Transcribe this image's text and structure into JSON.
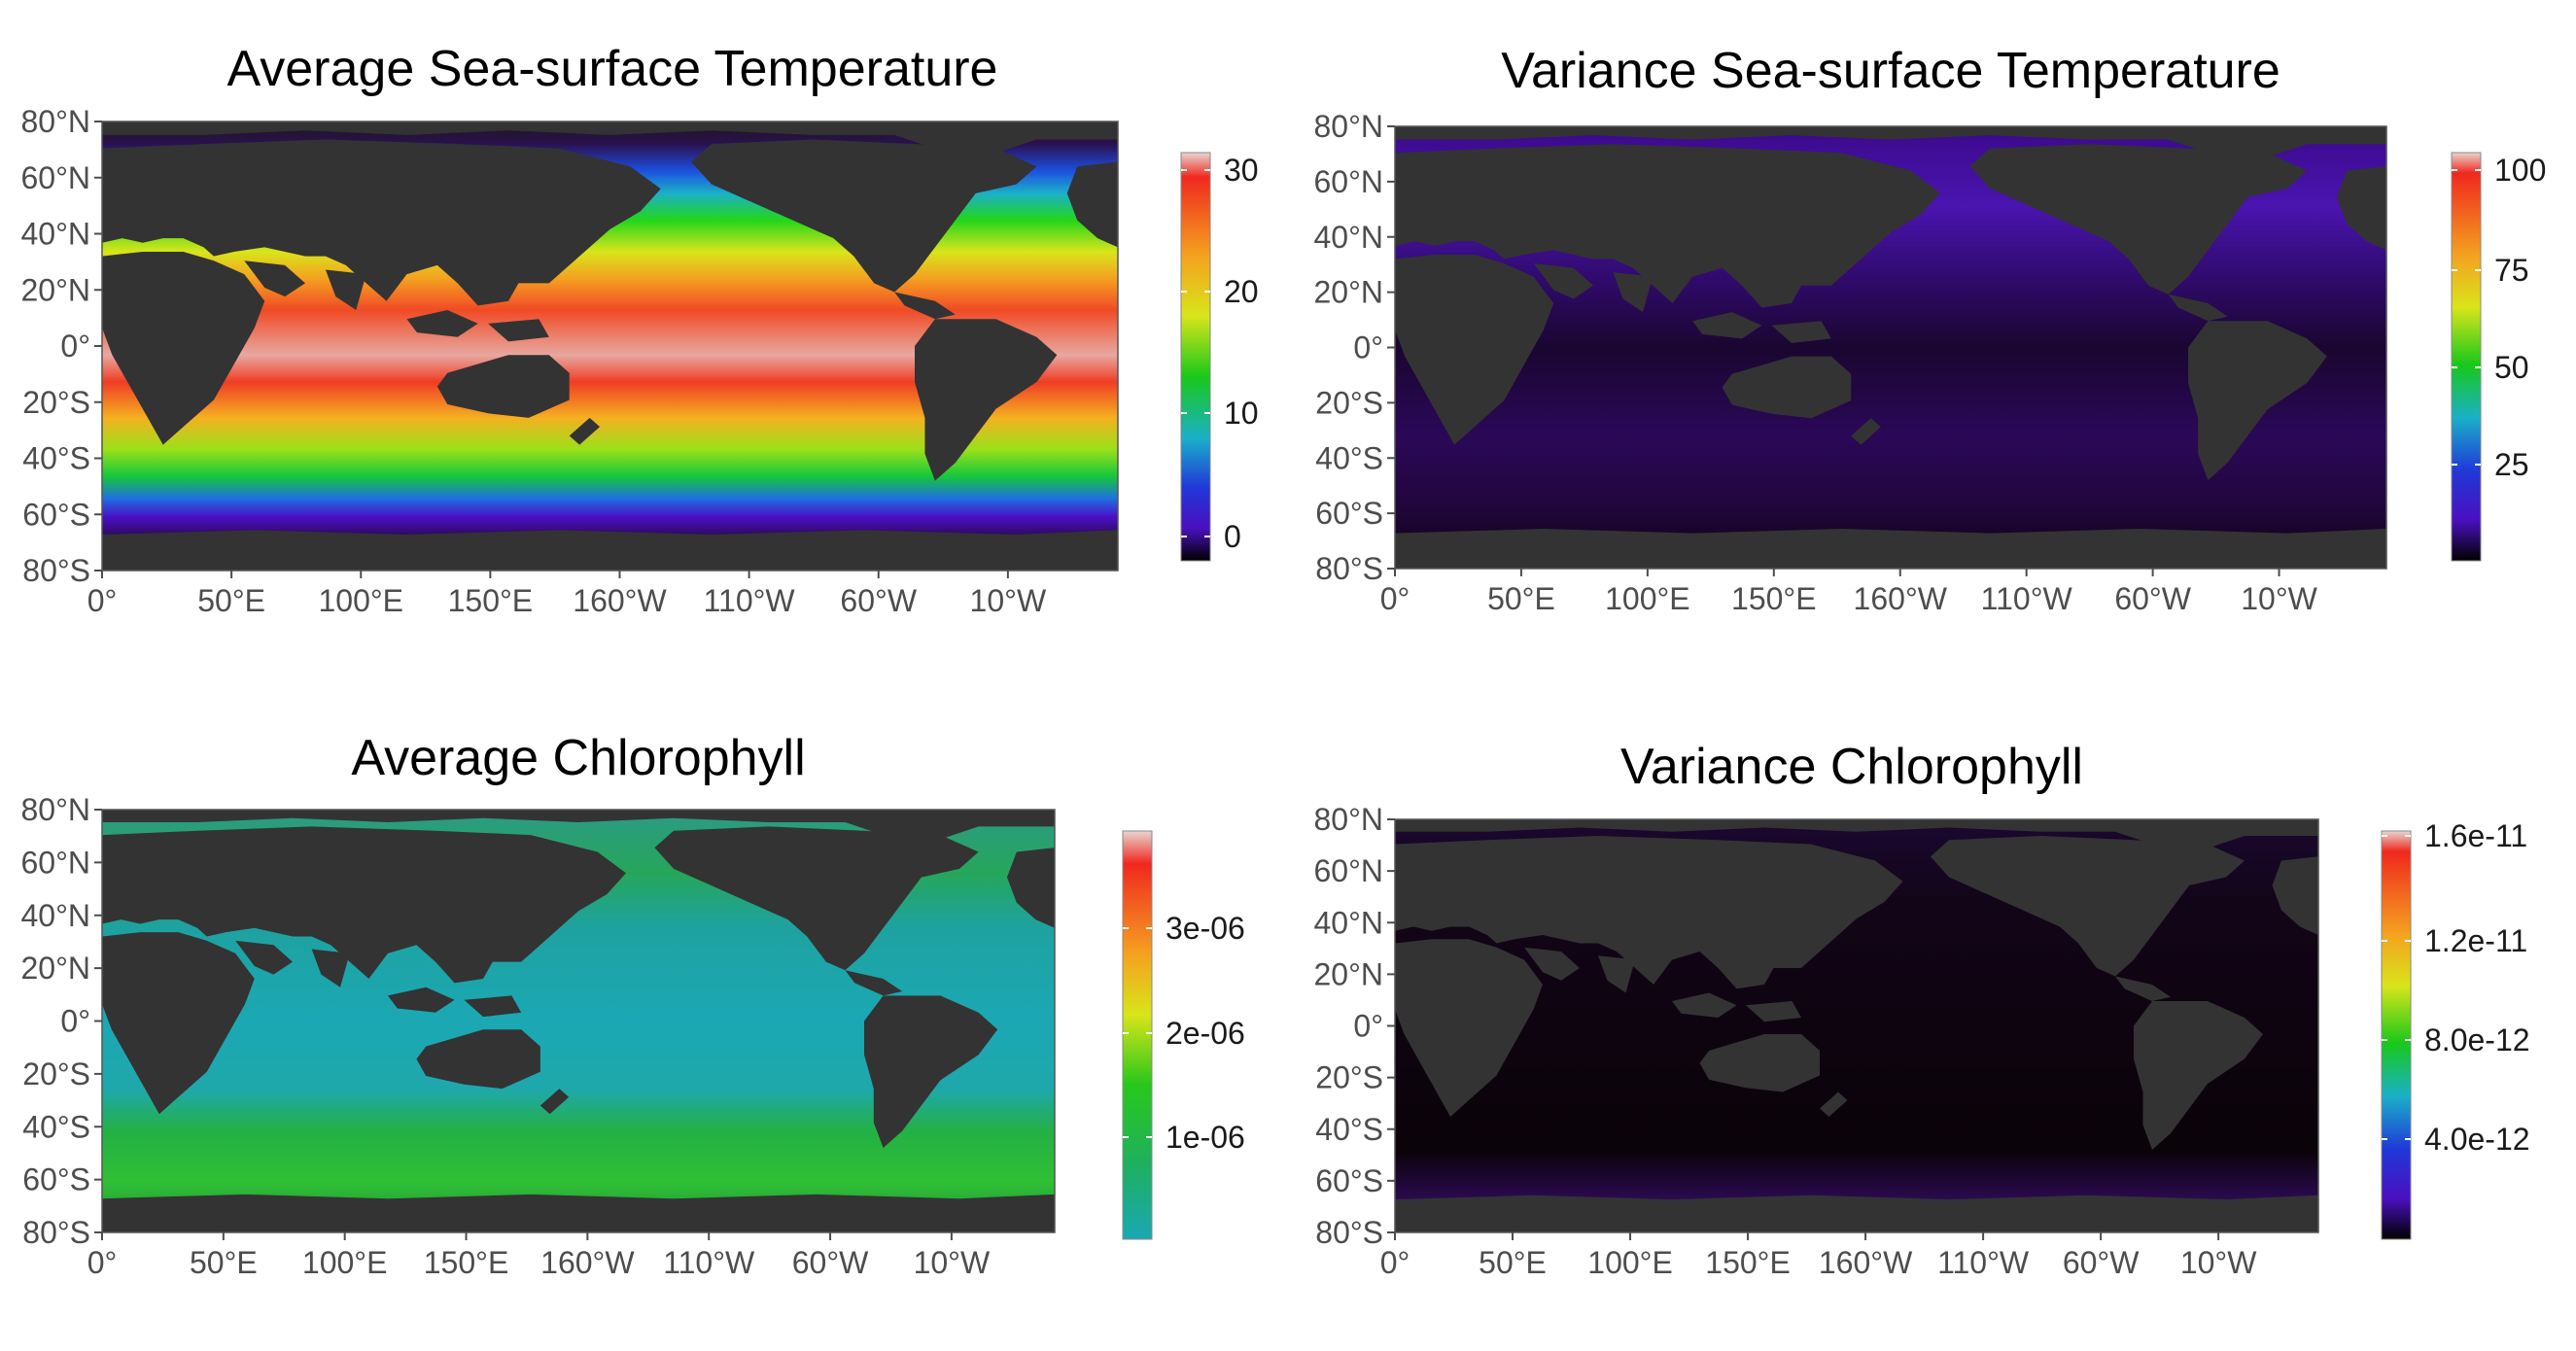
{
  "panels": [
    {
      "title": "Average Sea-surface Temperature",
      "lat_labels": [
        "80°N",
        "60°N",
        "40°N",
        "20°N",
        "0°",
        "20°S",
        "40°S",
        "60°S",
        "80°S"
      ],
      "lon_labels": [
        "0°",
        "50°E",
        "100°E",
        "150°E",
        "160°W",
        "110°W",
        "60°W",
        "10°W"
      ],
      "colorbar": {
        "ticks": [
          "30",
          "20",
          "10",
          "0"
        ],
        "palette": "rainbow-temperature"
      },
      "ocean_style": "sst-mean"
    },
    {
      "title": "Variance Sea-surface Temperature",
      "lat_labels": [
        "80°N",
        "60°N",
        "40°N",
        "20°N",
        "0°",
        "20°S",
        "40°S",
        "60°S",
        "80°S"
      ],
      "lon_labels": [
        "0°",
        "50°E",
        "100°E",
        "150°E",
        "160°W",
        "110°W",
        "60°W",
        "10°W"
      ],
      "colorbar": {
        "ticks": [
          "100",
          "75",
          "50",
          "25"
        ],
        "palette": "rainbow-variance"
      },
      "ocean_style": "sst-variance"
    },
    {
      "title": "Average Chlorophyll",
      "lat_labels": [
        "80°N",
        "60°N",
        "40°N",
        "20°N",
        "0°",
        "20°S",
        "40°S",
        "60°S",
        "80°S"
      ],
      "lon_labels": [
        "0°",
        "50°E",
        "100°E",
        "150°E",
        "160°W",
        "110°W",
        "60°W",
        "10°W"
      ],
      "colorbar": {
        "ticks": [
          "3e-06",
          "2e-06",
          "1e-06"
        ],
        "palette": "teal-green-rainbow"
      },
      "ocean_style": "chl-mean"
    },
    {
      "title": "Variance Chlorophyll",
      "lat_labels": [
        "80°N",
        "60°N",
        "40°N",
        "20°N",
        "0°",
        "20°S",
        "40°S",
        "60°S",
        "80°S"
      ],
      "lon_labels": [
        "0°",
        "50°E",
        "100°E",
        "150°E",
        "160°W",
        "110°W",
        "60°W",
        "10°W"
      ],
      "colorbar": {
        "ticks": [
          "1.6e-11",
          "1.2e-11",
          "8.0e-12",
          "4.0e-12"
        ],
        "palette": "rainbow-variance"
      },
      "ocean_style": "chl-variance"
    }
  ],
  "colors": {
    "land": "#333333",
    "axis_text": "#4d4d4d"
  }
}
